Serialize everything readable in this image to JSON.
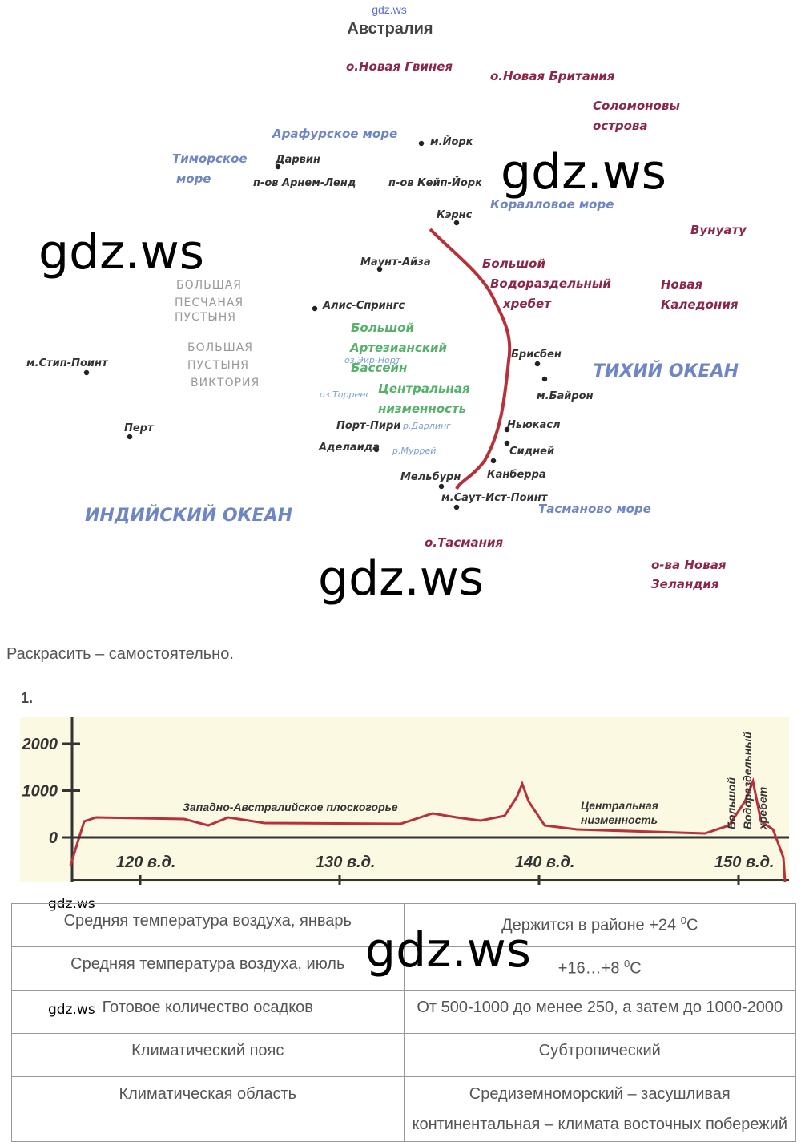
{
  "header": {
    "site": "gdz.ws",
    "title": "Австралия"
  },
  "watermark": "gdz.ws",
  "map": {
    "labels": [
      "о.Новая Гвинея",
      "о.Новая Британия",
      "Соломоновы",
      "острова",
      "Арафурское море",
      "м.Йорк",
      "Тиморское",
      "море",
      "Дарвин",
      "п-ов Арнем-Ленд",
      "п-ов Кейп-Йорк",
      "Коралловое море",
      "Кэрнс",
      "Вунуату",
      "Маунт-Айза",
      "Большой",
      "Водораздельный",
      "хребет",
      "БОЛЬШАЯ",
      "ПЕСЧАНАЯ",
      "ПУСТЫНЯ",
      "Новая",
      "Каледония",
      "Алис-Спрингс",
      "Большой",
      "Артезианский",
      "оз.Эйр-Норт",
      "Бассейн",
      "БОЛЬШАЯ",
      "ПУСТЫНЯ",
      "ВИКТОРИЯ",
      "Брисбен",
      "ТИХИЙ ОКЕАН",
      "м.Стип-Поинт",
      "оз.Торренс",
      "Центральная",
      "м.Байрон",
      "низменность",
      "Ньюкасл",
      "Перт",
      "Порт-Пири",
      "р.Дарлинг",
      "Сидней",
      "Аделаида",
      "р.Муррей",
      "Канберра",
      "Мельбурн",
      "м.Саут-Ист-Поинт",
      "Тасманово море",
      "ИНДИЙСКИЙ ОКЕАН",
      "о.Тасмания",
      "о-ва Новая",
      "Зеландия"
    ]
  },
  "instruction": "Раскрасить – самостоятельно.",
  "task_number": "1.",
  "profile": {
    "yticks": [
      0,
      1000,
      2000
    ],
    "xticks": [
      {
        "value": 120,
        "label": "120 в.д."
      },
      {
        "value": 130,
        "label": "130 в.д."
      },
      {
        "value": 140,
        "label": "140 в.д."
      },
      {
        "value": 150,
        "label": "150 в.д."
      }
    ],
    "labels": [
      "Западно-Австралийское плоскогорье",
      "Центральная",
      "низменность",
      "Большой",
      "Водораздельный",
      "хребет"
    ]
  },
  "table": {
    "rows": [
      [
        [
          "Средняя температура воздуха, январь"
        ],
        [
          [
            "Держится в районе +24 ",
            "0",
            "С"
          ]
        ]
      ],
      [
        [
          "Средняя температура воздуха, июль"
        ],
        [
          [
            "+16…+8 ",
            "0",
            "С"
          ]
        ]
      ],
      [
        [
          "Готовое количество осадков"
        ],
        [
          [
            "От 500-1000 до менее 250, а затем до 1000-2000"
          ]
        ]
      ],
      [
        [
          "Климатический пояс"
        ],
        [
          [
            "Субтропический"
          ]
        ]
      ],
      [
        [
          "Климатическая область"
        ],
        [
          [
            "Средиземноморский – засушливая"
          ],
          [
            "континентальная – климата восточных побережий"
          ]
        ]
      ]
    ]
  }
}
